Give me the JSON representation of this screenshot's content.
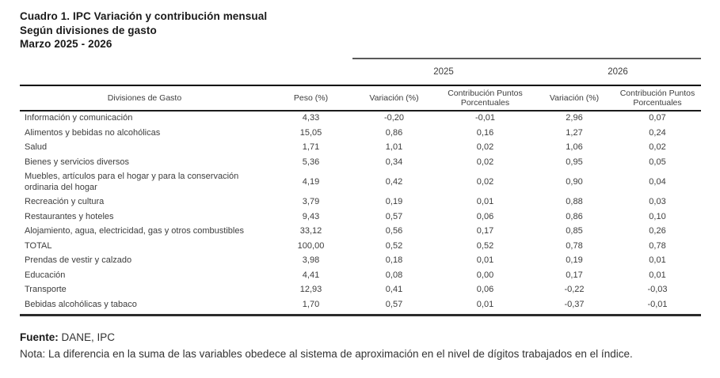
{
  "title": {
    "line1": "Cuadro 1. IPC Variación y contribución mensual",
    "line2": "Según divisiones de gasto",
    "line3": "Marzo 2025 - 2026"
  },
  "table": {
    "year_headers": [
      "2025",
      "2026"
    ],
    "columns": {
      "division": "Divisiones de Gasto",
      "peso": "Peso (%)",
      "variacion": "Variación (%)",
      "contribucion": "Contribución Puntos Porcentuales"
    },
    "rows": [
      {
        "label": "Información y comunicación",
        "peso": "4,33",
        "var_2025": "-0,20",
        "contrib_2025": "-0,01",
        "var_2026": "2,96",
        "contrib_2026": "0,07"
      },
      {
        "label": "Alimentos y bebidas no alcohólicas",
        "peso": "15,05",
        "var_2025": "0,86",
        "contrib_2025": "0,16",
        "var_2026": "1,27",
        "contrib_2026": "0,24"
      },
      {
        "label": "Salud",
        "peso": "1,71",
        "var_2025": "1,01",
        "contrib_2025": "0,02",
        "var_2026": "1,06",
        "contrib_2026": "0,02"
      },
      {
        "label": "Bienes y servicios diversos",
        "peso": "5,36",
        "var_2025": "0,34",
        "contrib_2025": "0,02",
        "var_2026": "0,95",
        "contrib_2026": "0,05"
      },
      {
        "label": "Muebles, artículos para el hogar y para la conservación ordinaria del hogar",
        "peso": "4,19",
        "var_2025": "0,42",
        "contrib_2025": "0,02",
        "var_2026": "0,90",
        "contrib_2026": "0,04"
      },
      {
        "label": "Recreación y cultura",
        "peso": "3,79",
        "var_2025": "0,19",
        "contrib_2025": "0,01",
        "var_2026": "0,88",
        "contrib_2026": "0,03"
      },
      {
        "label": "Restaurantes y hoteles",
        "peso": "9,43",
        "var_2025": "0,57",
        "contrib_2025": "0,06",
        "var_2026": "0,86",
        "contrib_2026": "0,10"
      },
      {
        "label": "Alojamiento, agua, electricidad, gas y otros combustibles",
        "peso": "33,12",
        "var_2025": "0,56",
        "contrib_2025": "0,17",
        "var_2026": "0,85",
        "contrib_2026": "0,26"
      },
      {
        "label": "TOTAL",
        "peso": "100,00",
        "var_2025": "0,52",
        "contrib_2025": "0,52",
        "var_2026": "0,78",
        "contrib_2026": "0,78"
      },
      {
        "label": "Prendas de vestir y calzado",
        "peso": "3,98",
        "var_2025": "0,18",
        "contrib_2025": "0,01",
        "var_2026": "0,19",
        "contrib_2026": "0,01"
      },
      {
        "label": "Educación",
        "peso": "4,41",
        "var_2025": "0,08",
        "contrib_2025": "0,00",
        "var_2026": "0,17",
        "contrib_2026": "0,01"
      },
      {
        "label": "Transporte",
        "peso": "12,93",
        "var_2025": "0,41",
        "contrib_2025": "0,06",
        "var_2026": "-0,22",
        "contrib_2026": "-0,03"
      },
      {
        "label": "Bebidas alcohólicas y tabaco",
        "peso": "1,70",
        "var_2025": "0,57",
        "contrib_2025": "0,01",
        "var_2026": "-0,37",
        "contrib_2026": "-0,01"
      }
    ]
  },
  "footer": {
    "fuente_label": "Fuente:",
    "fuente_value": "DANE, IPC",
    "nota": "Nota: La diferencia en la suma de las variables obedece al sistema de aproximación en el nivel de dígitos trabajados en el índice."
  }
}
